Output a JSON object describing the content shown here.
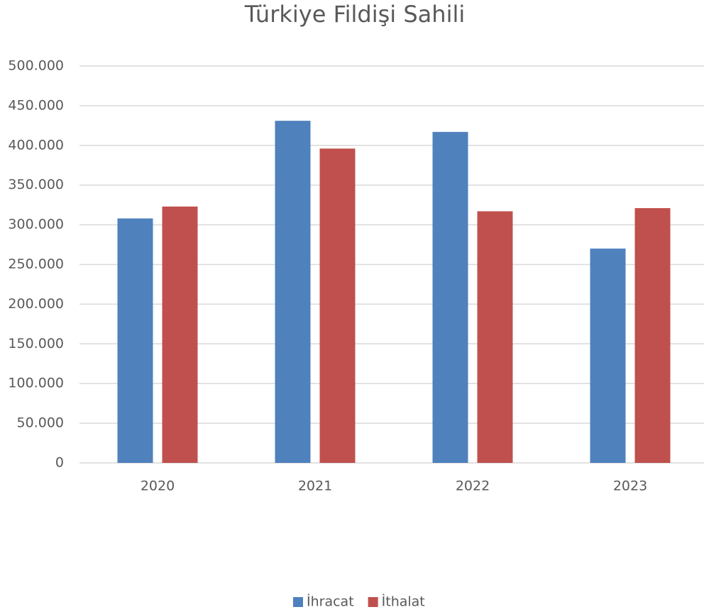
{
  "chart_data": {
    "type": "bar",
    "title": "Türkiye Fildişi Sahili",
    "categories": [
      "2020",
      "2021",
      "2022",
      "2023"
    ],
    "series": [
      {
        "name": "İhracat",
        "color": "#4f81bd",
        "values": [
          308000,
          431000,
          417000,
          270000
        ]
      },
      {
        "name": "İthalat",
        "color": "#c0504d",
        "values": [
          323000,
          396000,
          317000,
          321000
        ]
      }
    ],
    "ylim": [
      0,
      500000
    ],
    "yticks": [
      0,
      {
        "value": 50000,
        "label": "50.000"
      },
      {
        "value": 100000,
        "label": "100.000"
      },
      {
        "value": 150000,
        "label": "150.000"
      },
      {
        "value": 200000,
        "label": "200.000"
      },
      {
        "value": 250000,
        "label": "250.000"
      },
      {
        "value": 300000,
        "label": "300.000"
      },
      {
        "value": 350000,
        "label": "350.000"
      },
      {
        "value": 400000,
        "label": "400.000"
      },
      {
        "value": 450000,
        "label": "450.000"
      },
      {
        "value": 500000,
        "label": "500.000"
      }
    ],
    "grid": true,
    "legend": "bottom"
  }
}
